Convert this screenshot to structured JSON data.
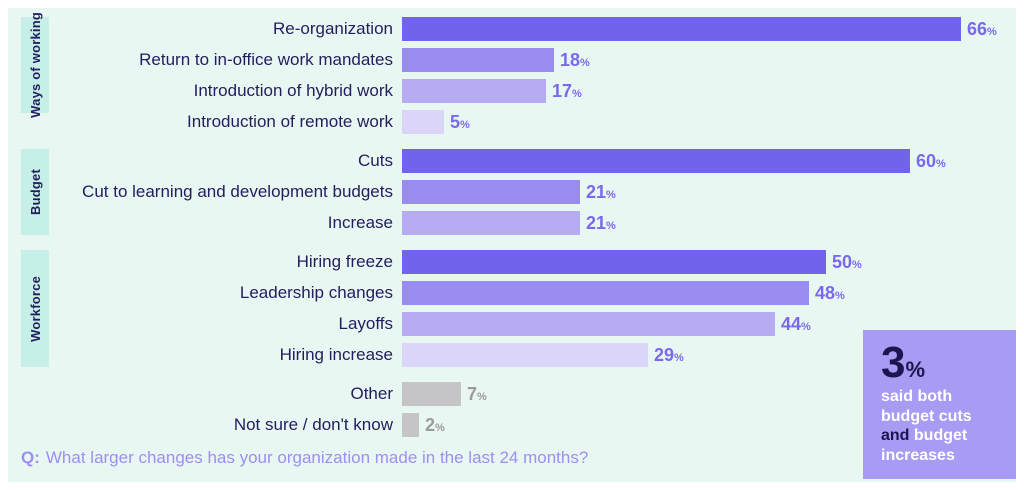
{
  "chart_data": {
    "type": "bar",
    "orientation": "horizontal",
    "value_unit": "%",
    "xlim": [
      0,
      66
    ],
    "legend": "none",
    "grid": false,
    "question_prefix": "Q:",
    "question_text": "What larger changes has your organization made in the last 24 months?",
    "groups": [
      {
        "tag": "Ways of working",
        "items": [
          {
            "label": "Re-organization",
            "value": 66,
            "shade": "s1"
          },
          {
            "label": "Return to in-office work mandates",
            "value": 18,
            "shade": "s2"
          },
          {
            "label": "Introduction of hybrid work",
            "value": 17,
            "shade": "s3"
          },
          {
            "label": "Introduction of remote work",
            "value": 5,
            "shade": "s4"
          }
        ]
      },
      {
        "tag": "Budget",
        "items": [
          {
            "label": "Cuts",
            "value": 60,
            "shade": "s1"
          },
          {
            "label": "Cut to learning and development budgets",
            "value": 21,
            "shade": "s2"
          },
          {
            "label": "Increase",
            "value": 21,
            "shade": "s3"
          }
        ]
      },
      {
        "tag": "Workforce",
        "items": [
          {
            "label": "Hiring freeze",
            "value": 50,
            "shade": "s1"
          },
          {
            "label": "Leadership changes",
            "value": 48,
            "shade": "s2"
          },
          {
            "label": "Layoffs",
            "value": 44,
            "shade": "s3"
          },
          {
            "label": "Hiring increase",
            "value": 29,
            "shade": "s4"
          }
        ]
      },
      {
        "tag": "",
        "items": [
          {
            "label": "Other",
            "value": 7,
            "shade": "gray"
          },
          {
            "label": "Not sure / don't know",
            "value": 2,
            "shade": "gray"
          }
        ]
      }
    ]
  },
  "callout": {
    "value": "3",
    "unit": "%",
    "segments": [
      {
        "text": "said both budget cuts ",
        "tone": "light"
      },
      {
        "text": "and",
        "tone": "dark"
      },
      {
        "text": " budget increases",
        "tone": "light"
      }
    ]
  },
  "colors": {
    "panel_bg": "#e9f7f3",
    "tag_bg": "#c6efe7",
    "label_text": "#221d5f",
    "bar_s1": "#7163eb",
    "bar_s2": "#998cf0",
    "bar_s3": "#b7acf4",
    "bar_s4": "#dcd5fa",
    "bar_gray": "#c5c5c7",
    "value_purple": "#7a69ec",
    "value_gray": "#9b9b9e",
    "question_text_color": "#9d8ef2",
    "callout_bg": "#a79bf3",
    "callout_dark": "#1b1650",
    "callout_light": "#ffffff"
  }
}
